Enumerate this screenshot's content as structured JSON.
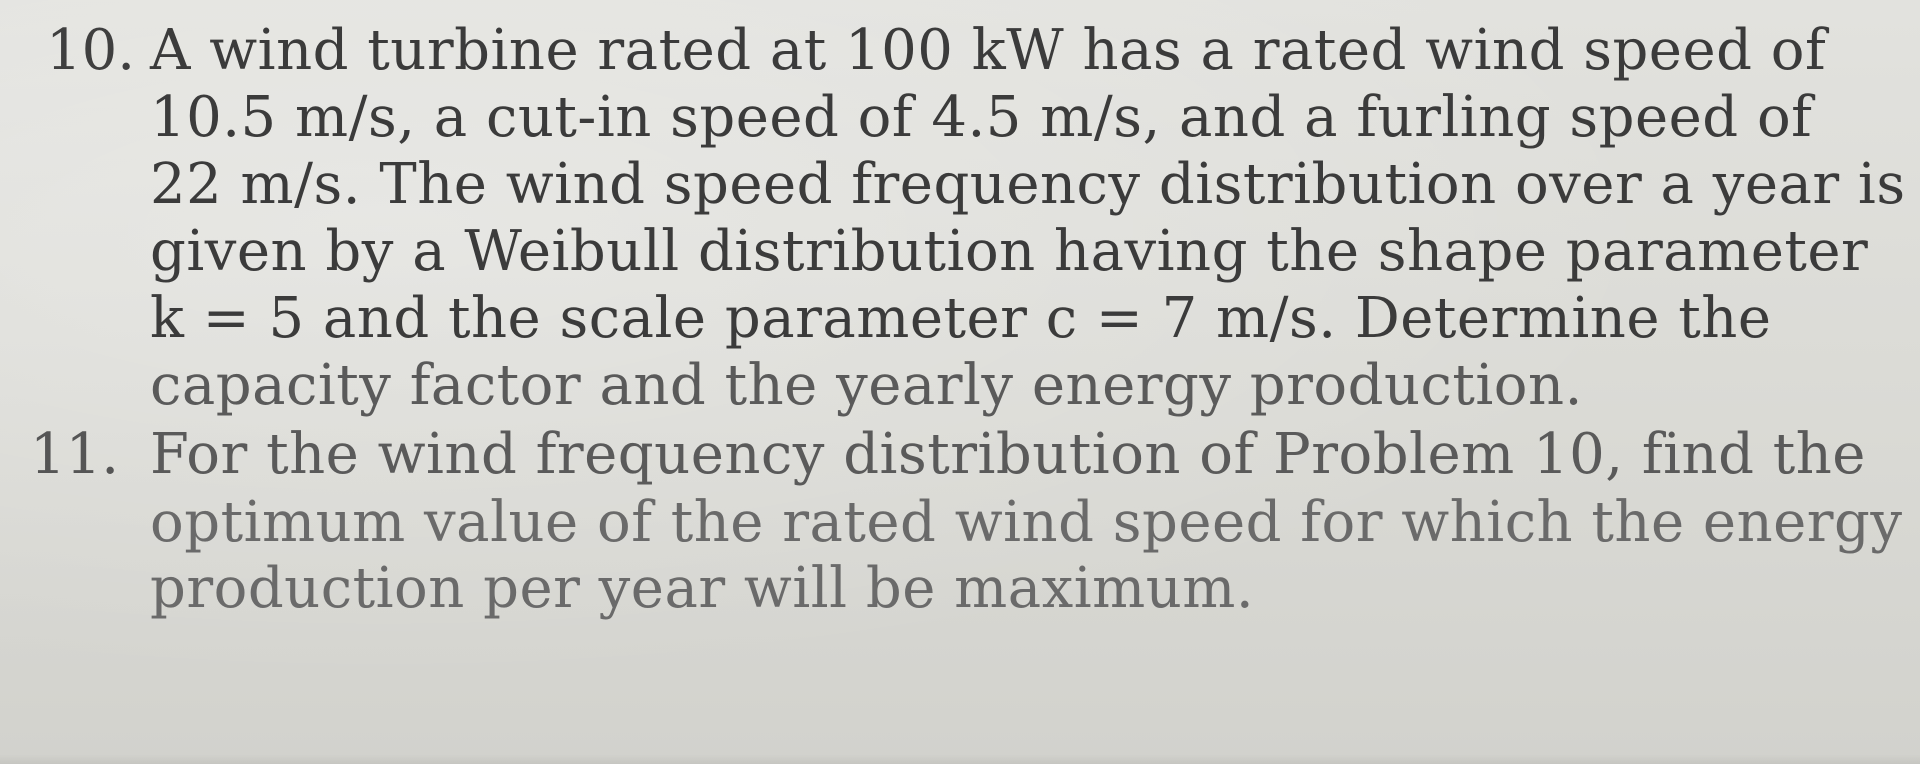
{
  "problems": [
    {
      "number": "10.",
      "lines": [
        "A wind turbine rated at 100 kW has a rated wind speed of",
        "10.5 m/s, a cut-in speed of 4.5 m/s, and a furling speed of",
        "22 m/s. The wind speed frequency distribution over a year is",
        "given by a Weibull distribution having the shape parameter",
        "k = 5 and the scale parameter c = 7 m/s. Determine the",
        "capacity factor and the yearly energy production."
      ]
    },
    {
      "number": "11.",
      "lines": [
        "For the wind frequency distribution of Problem 10, find the",
        "optimum value of the rated wind speed for which the energy",
        "production per year will be maximum."
      ]
    }
  ]
}
